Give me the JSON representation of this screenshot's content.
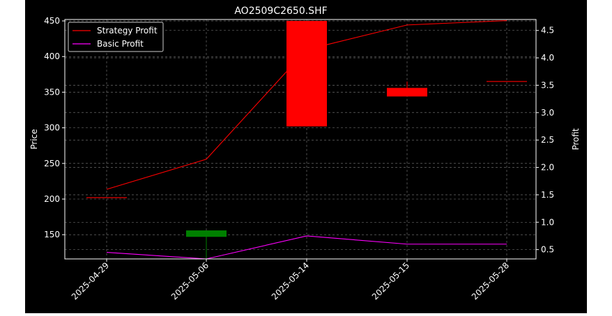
{
  "chart_data": {
    "type": "candlestick-with-lines",
    "title": "AO2509C2650.SHF",
    "ylabel_left": "Price",
    "ylabel_right": "Profit",
    "xlabel": "",
    "categories": [
      "2025-04-29",
      "2025-05-06",
      "2025-05-14",
      "2025-05-15",
      "2025-05-28"
    ],
    "ylim_left": [
      116,
      452
    ],
    "ylim_right": [
      0.33,
      4.7
    ],
    "yticks_left": [
      150,
      200,
      250,
      300,
      350,
      400,
      450
    ],
    "yticks_right": [
      0.5,
      1.0,
      1.5,
      2.0,
      2.5,
      3.0,
      3.5,
      4.0,
      4.5
    ],
    "grid": true,
    "legend_position": "top-left",
    "candles": [
      {
        "date": "2025-04-29",
        "open": 202,
        "close": 202,
        "high": 202,
        "low": 202,
        "color": "#ff0000"
      },
      {
        "date": "2025-05-06",
        "open": 156,
        "close": 147,
        "high": 156,
        "low": 117,
        "color": "#008000"
      },
      {
        "date": "2025-05-14",
        "open": 302,
        "close": 450,
        "high": 450,
        "low": 302,
        "color": "#ff0000"
      },
      {
        "date": "2025-05-15",
        "open": 344,
        "close": 356,
        "high": 365,
        "low": 344,
        "color": "#ff0000"
      },
      {
        "date": "2025-05-28",
        "open": 365,
        "close": 365,
        "high": 365,
        "low": 365,
        "color": "#ff0000"
      }
    ],
    "series": [
      {
        "name": "Strategy Profit",
        "color": "#ff0000",
        "values": [
          1.6,
          2.15,
          4.15,
          4.6,
          4.68
        ]
      },
      {
        "name": "Basic Profit",
        "color": "#ff00ff",
        "values": [
          0.45,
          0.33,
          0.75,
          0.6,
          0.6
        ]
      }
    ]
  }
}
